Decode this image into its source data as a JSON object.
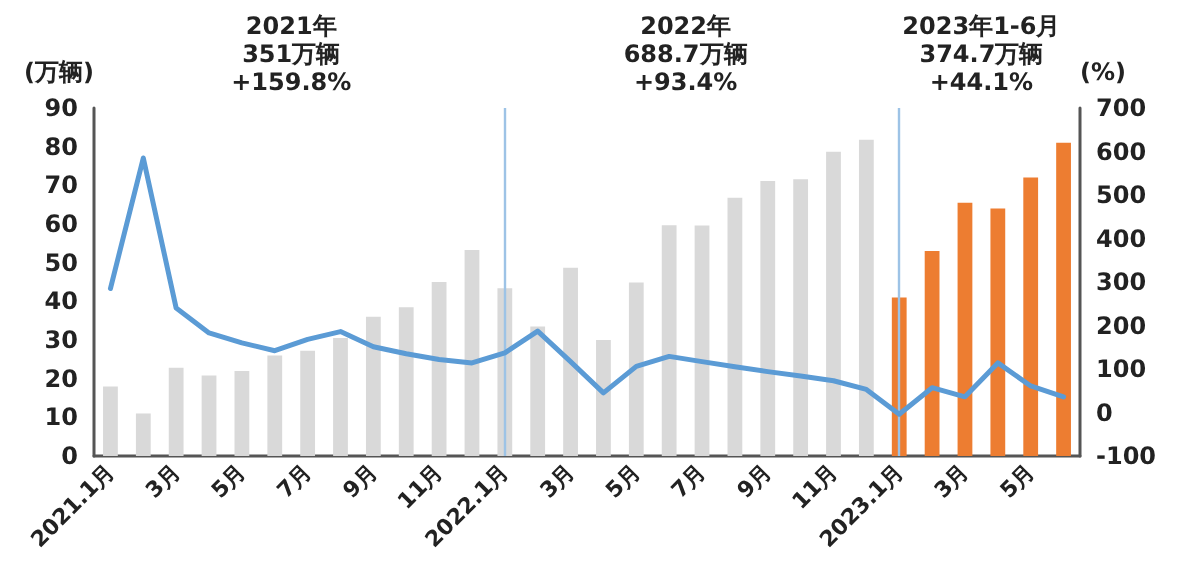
{
  "chart_data": {
    "type": "bar",
    "categories": [
      "2021.1月",
      null,
      "3月",
      null,
      "5月",
      null,
      "7月",
      null,
      "9月",
      null,
      "11月",
      null,
      "2022.1月",
      null,
      "3月",
      null,
      "5月",
      null,
      "7月",
      null,
      "9月",
      null,
      "11月",
      null,
      "2023.1月",
      null,
      "3月",
      null,
      "5月",
      null
    ],
    "series": [
      {
        "colors": [
          "#d9d9d9",
          "#d9d9d9",
          "#d9d9d9",
          "#d9d9d9",
          "#d9d9d9",
          "#d9d9d9",
          "#d9d9d9",
          "#d9d9d9",
          "#d9d9d9",
          "#d9d9d9",
          "#d9d9d9",
          "#d9d9d9",
          "#d9d9d9",
          "#d9d9d9",
          "#d9d9d9",
          "#d9d9d9",
          "#d9d9d9",
          "#d9d9d9",
          "#d9d9d9",
          "#d9d9d9",
          "#d9d9d9",
          "#d9d9d9",
          "#d9d9d9",
          "#d9d9d9",
          "#ed7d31",
          "#ed7d31",
          "#ed7d31",
          "#ed7d31",
          "#ed7d31",
          "#ed7d31"
        ],
        "values": [
          18,
          11,
          22.8,
          20.8,
          22,
          26,
          27.2,
          30.5,
          36,
          38.5,
          45,
          53.3,
          43.4,
          33.5,
          48.7,
          30,
          44.9,
          59.7,
          59.6,
          66.8,
          71.1,
          71.6,
          78.7,
          81.8,
          41,
          53,
          65.5,
          64,
          72,
          81
        ]
      },
      {
        "type": "line",
        "axis": "y2",
        "color": "#5b9bd5",
        "values": [
          285,
          585,
          240,
          183,
          160,
          142,
          168,
          186,
          151,
          135,
          122,
          114,
          137,
          187,
          117,
          45,
          106,
          129,
          117,
          105,
          94,
          84,
          73,
          53,
          -4,
          57,
          36,
          114,
          61,
          36
        ]
      }
    ],
    "ylabel": "(万辆)",
    "y2label": "(%)",
    "ylim": [
      0,
      90
    ],
    "yticks": [
      0,
      10,
      20,
      30,
      40,
      50,
      60,
      70,
      80,
      90
    ],
    "y2lim": [
      -100,
      700
    ],
    "y2ticks": [
      -100,
      0,
      100,
      200,
      300,
      400,
      500,
      600,
      700
    ],
    "ref_lines": [
      {
        "axis": "x",
        "value": "2022.1月",
        "color": "#9dc3e6"
      },
      {
        "axis": "x",
        "value": "2023.1月",
        "color": "#9dc3e6"
      }
    ],
    "annotations": [
      "2021年\n351万辆\n+159.8%",
      "2022年\n688.7万辆\n+93.4%",
      "2023年1-6月\n374.7万辆\n+44.1%"
    ],
    "grid": false,
    "marker": "none",
    "line_style": "solid"
  }
}
